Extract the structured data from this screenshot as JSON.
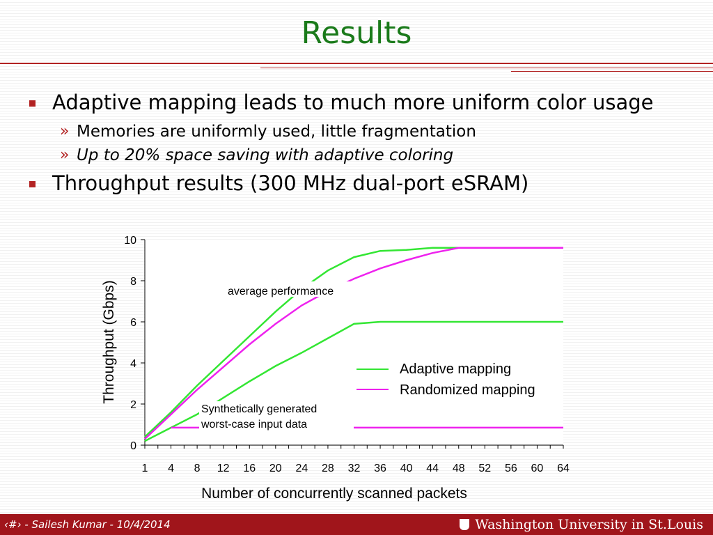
{
  "slide": {
    "title": "Results",
    "bullets": [
      {
        "text": "Adaptive mapping leads to much more uniform color usage",
        "sub": [
          "Memories are uniformly used, little fragmentation",
          "Up to 20% space saving with adaptive coloring"
        ]
      },
      {
        "text": "Throughput results (300 MHz dual-port eSRAM)"
      }
    ],
    "footer_text": "‹#› - Sailesh Kumar - 10/4/2014",
    "footer_logo": "Washington University in St.Louis"
  },
  "colors": {
    "title": "#1a7a1a",
    "accent": "#b22222",
    "adaptive": "#33e633",
    "randomized": "#ee22ee"
  },
  "chart_data": {
    "type": "line",
    "xlabel": "Number of concurrently scanned packets",
    "ylabel": "Throughput (Gbps)",
    "ylim": [
      0,
      10
    ],
    "yticks": [
      "0",
      "2",
      "4",
      "6",
      "8",
      "10"
    ],
    "categories": [
      "1",
      "4",
      "8",
      "12",
      "16",
      "20",
      "24",
      "28",
      "32",
      "36",
      "40",
      "44",
      "48",
      "52",
      "56",
      "60",
      "64"
    ],
    "series": [
      {
        "name": "Adaptive mapping",
        "group": "average",
        "values": [
          0.4,
          1.6,
          2.9,
          4.1,
          5.3,
          6.5,
          7.6,
          8.5,
          9.15,
          9.45,
          9.5,
          9.6,
          9.6,
          9.6,
          9.6,
          9.6,
          9.6
        ]
      },
      {
        "name": "Randomized mapping",
        "group": "average",
        "values": [
          0.3,
          1.5,
          2.7,
          3.8,
          4.9,
          5.9,
          6.8,
          7.5,
          8.1,
          8.6,
          9.0,
          9.35,
          9.6,
          9.6,
          9.6,
          9.6,
          9.6
        ]
      },
      {
        "name": "Adaptive mapping",
        "group": "worst-case",
        "values": [
          0.2,
          0.85,
          1.5,
          2.3,
          3.1,
          3.85,
          4.5,
          5.2,
          5.9,
          6.0,
          6.0,
          6.0,
          6.0,
          6.0,
          6.0,
          6.0,
          6.0
        ]
      },
      {
        "name": "Randomized mapping",
        "group": "worst-case",
        "values": [
          0.85,
          0.85,
          0.85,
          0.85,
          0.85,
          0.85,
          0.85,
          0.85,
          0.85,
          0.85,
          0.85,
          0.85,
          0.85,
          0.85,
          0.85,
          0.85,
          0.85
        ]
      }
    ],
    "annotations": [
      "average performance",
      "Synthetically generated",
      "worst-case input data"
    ],
    "legend": [
      "Adaptive mapping",
      "Randomized mapping"
    ],
    "legend_position": "right"
  }
}
